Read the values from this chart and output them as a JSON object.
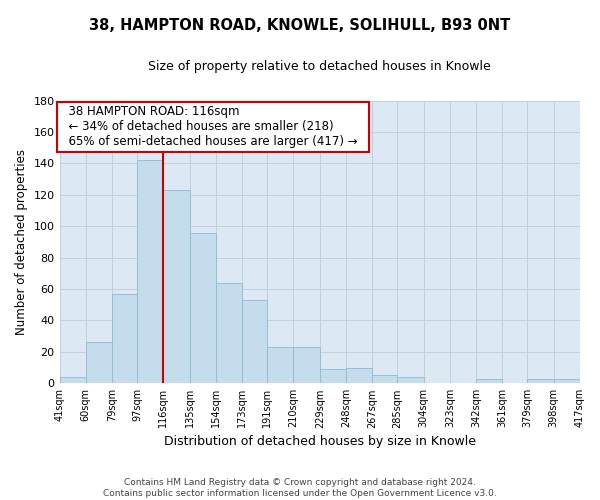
{
  "title": "38, HAMPTON ROAD, KNOWLE, SOLIHULL, B93 0NT",
  "subtitle": "Size of property relative to detached houses in Knowle",
  "xlabel": "Distribution of detached houses by size in Knowle",
  "ylabel": "Number of detached properties",
  "bar_color": "#c5dced",
  "bar_edge_color": "#8dbbd4",
  "plot_bg_color": "#dce9f5",
  "fig_bg_color": "#ffffff",
  "grid_color": "#c0d0e0",
  "vline_x": 116,
  "vline_color": "#cc0000",
  "annotation_title": "38 HAMPTON ROAD: 116sqm",
  "annotation_line1": "← 34% of detached houses are smaller (218)",
  "annotation_line2": "65% of semi-detached houses are larger (417) →",
  "annotation_box_color": "#ffffff",
  "annotation_box_edge": "#cc0000",
  "bins": [
    41,
    60,
    79,
    97,
    116,
    135,
    154,
    173,
    191,
    210,
    229,
    248,
    267,
    285,
    304,
    323,
    342,
    361,
    379,
    398,
    417
  ],
  "counts": [
    4,
    26,
    57,
    142,
    123,
    96,
    64,
    53,
    23,
    23,
    9,
    10,
    5,
    4,
    0,
    0,
    3,
    0,
    3,
    3
  ],
  "ylim": [
    0,
    180
  ],
  "yticks": [
    0,
    20,
    40,
    60,
    80,
    100,
    120,
    140,
    160,
    180
  ],
  "footer_line1": "Contains HM Land Registry data © Crown copyright and database right 2024.",
  "footer_line2": "Contains public sector information licensed under the Open Government Licence v3.0."
}
